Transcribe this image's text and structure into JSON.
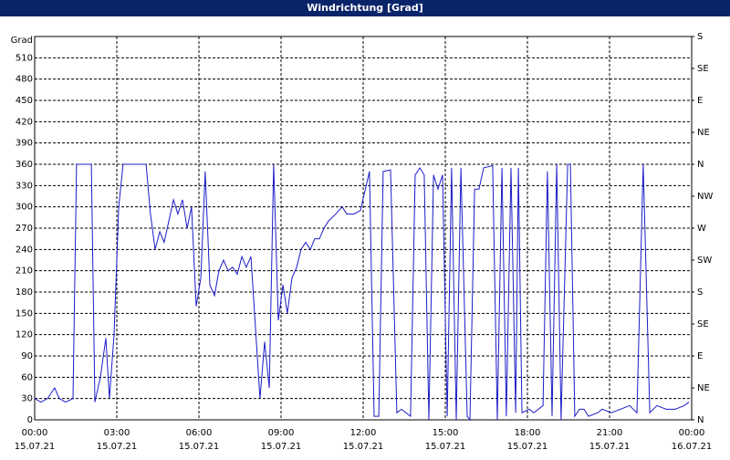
{
  "chart_data": {
    "type": "line",
    "title": "Windrichtung [Grad]",
    "y_label": "Grad",
    "x": [
      0,
      0.23,
      0.47,
      0.73,
      0.9,
      1.13,
      1.4,
      1.53,
      2.07,
      2.2,
      2.4,
      2.6,
      2.73,
      2.9,
      3.07,
      3.23,
      4.07,
      4.23,
      4.4,
      4.57,
      4.73,
      4.9,
      5.07,
      5.23,
      5.4,
      5.57,
      5.73,
      5.9,
      6.07,
      6.23,
      6.4,
      6.57,
      6.73,
      6.9,
      7.07,
      7.23,
      7.4,
      7.57,
      7.73,
      7.9,
      8.23,
      8.4,
      8.57,
      8.73,
      8.9,
      9.07,
      9.23,
      9.4,
      9.57,
      9.73,
      9.9,
      10.07,
      10.23,
      10.4,
      10.57,
      10.73,
      11,
      11.23,
      11.4,
      11.67,
      11.9,
      12.23,
      12.4,
      12.57,
      12.73,
      13,
      13.23,
      13.4,
      13.73,
      13.9,
      14.07,
      14.23,
      14.4,
      14.57,
      14.73,
      14.9,
      15.07,
      15.23,
      15.4,
      15.57,
      15.8,
      15.9,
      16.07,
      16.23,
      16.4,
      16.73,
      16.9,
      17.07,
      17.23,
      17.4,
      17.57,
      17.67,
      17.8,
      18.07,
      18.23,
      18.57,
      18.73,
      18.9,
      19.07,
      19.23,
      19.47,
      19.57,
      19.73,
      19.9,
      20.07,
      20.23,
      20.57,
      20.73,
      21.07,
      21.4,
      21.73,
      22,
      22.23,
      22.47,
      22.73,
      23.07,
      23.4,
      23.73,
      23.9
    ],
    "series": [
      {
        "name": "Windrichtung",
        "color": "#1c1cc8",
        "values": [
          30,
          25,
          30,
          45,
          30,
          25,
          30,
          360,
          360,
          25,
          60,
          115,
          30,
          120,
          300,
          360,
          360,
          290,
          240,
          265,
          250,
          280,
          310,
          290,
          310,
          270,
          300,
          160,
          200,
          350,
          190,
          175,
          210,
          225,
          210,
          215,
          205,
          230,
          215,
          230,
          30,
          110,
          45,
          360,
          140,
          190,
          150,
          200,
          215,
          240,
          250,
          240,
          255,
          255,
          270,
          280,
          290,
          300,
          290,
          290,
          295,
          350,
          5,
          5,
          350,
          352,
          10,
          15,
          5,
          345,
          355,
          345,
          0,
          345,
          325,
          345,
          5,
          355,
          0,
          355,
          5,
          0,
          325,
          325,
          355,
          358,
          0,
          355,
          5,
          355,
          10,
          355,
          10,
          15,
          10,
          20,
          350,
          5,
          360,
          0,
          360,
          360,
          5,
          15,
          15,
          5,
          10,
          15,
          10,
          15,
          20,
          10,
          360,
          10,
          20,
          15,
          15,
          20,
          25
        ]
      }
    ],
    "xlim": [
      0,
      24
    ],
    "xticks": [
      {
        "value": 0,
        "label": "00:00"
      },
      {
        "value": 3,
        "label": "03:00"
      },
      {
        "value": 6,
        "label": "06:00"
      },
      {
        "value": 9,
        "label": "09:00"
      },
      {
        "value": 12,
        "label": "12:00"
      },
      {
        "value": 15,
        "label": "15:00"
      },
      {
        "value": 18,
        "label": "18:00"
      },
      {
        "value": 21,
        "label": "21:00"
      },
      {
        "value": 24,
        "label": "00:00"
      }
    ],
    "xtick_dates": [
      "15.07.21",
      "15.07.21",
      "15.07.21",
      "15.07.21",
      "15.07.21",
      "15.07.21",
      "15.07.21",
      "15.07.21",
      "16.07.21"
    ],
    "ylim": [
      0,
      540
    ],
    "yticks": [
      0,
      30,
      60,
      90,
      120,
      150,
      180,
      210,
      240,
      270,
      300,
      330,
      360,
      390,
      420,
      450,
      480,
      510
    ],
    "y2lim": [
      0,
      540
    ],
    "y2ticks": [
      {
        "value": 0,
        "label": "N"
      },
      {
        "value": 45,
        "label": "NE"
      },
      {
        "value": 90,
        "label": "E"
      },
      {
        "value": 135,
        "label": "SE"
      },
      {
        "value": 180,
        "label": "S"
      },
      {
        "value": 225,
        "label": "SW"
      },
      {
        "value": 270,
        "label": "W"
      },
      {
        "value": 315,
        "label": "NW"
      },
      {
        "value": 360,
        "label": "N"
      },
      {
        "value": 405,
        "label": "NE"
      },
      {
        "value": 450,
        "label": "E"
      },
      {
        "value": 495,
        "label": "SE"
      },
      {
        "value": 540,
        "label": "S"
      }
    ],
    "grid": true
  }
}
